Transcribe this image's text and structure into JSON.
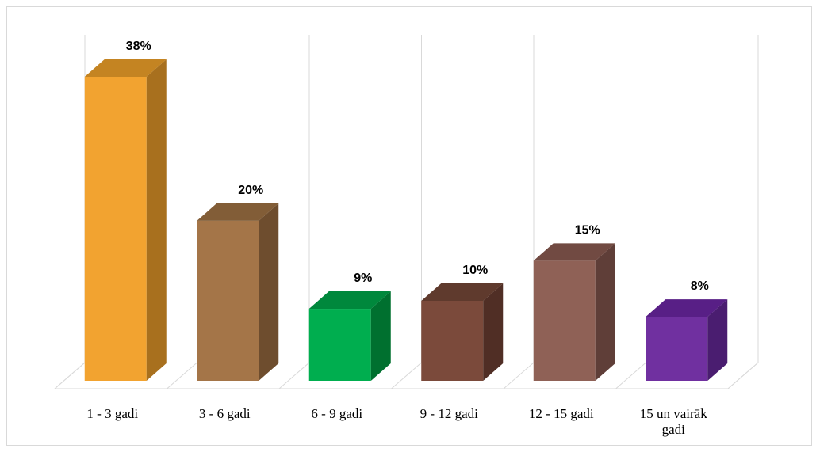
{
  "chart_data": {
    "type": "bar",
    "style": "3d-column",
    "categories": [
      "1 - 3 gadi",
      "3 - 6 gadi",
      "6 - 9 gadi",
      "9 - 12 gadi",
      "12 - 15 gadi",
      "15 un vairāk gadi"
    ],
    "category_lines": [
      [
        "1 - 3 gadi"
      ],
      [
        "3 - 6 gadi"
      ],
      [
        "6 - 9 gadi"
      ],
      [
        "9 - 12 gadi"
      ],
      [
        "12 - 15 gadi"
      ],
      [
        "15 un vairāk",
        "gadi"
      ]
    ],
    "values": [
      38,
      20,
      9,
      10,
      15,
      8
    ],
    "data_labels": [
      "38%",
      "20%",
      "9%",
      "10%",
      "15%",
      "8%"
    ],
    "colors": [
      "#F2A330",
      "#A47548",
      "#00AE4F",
      "#7B4A3B",
      "#8F6156",
      "#7030A0"
    ],
    "side_colors": [
      "#A8701E",
      "#6E4D2E",
      "#00702F",
      "#502E25",
      "#5F3E38",
      "#4A1D70"
    ],
    "top_colors": [
      "#C48422",
      "#825D37",
      "#00883C",
      "#5F3A2D",
      "#714A42",
      "#581F86"
    ],
    "title": "",
    "xlabel": "",
    "ylabel": "",
    "ylim": [
      0,
      40
    ],
    "grid": "vertical",
    "legend": "none"
  }
}
